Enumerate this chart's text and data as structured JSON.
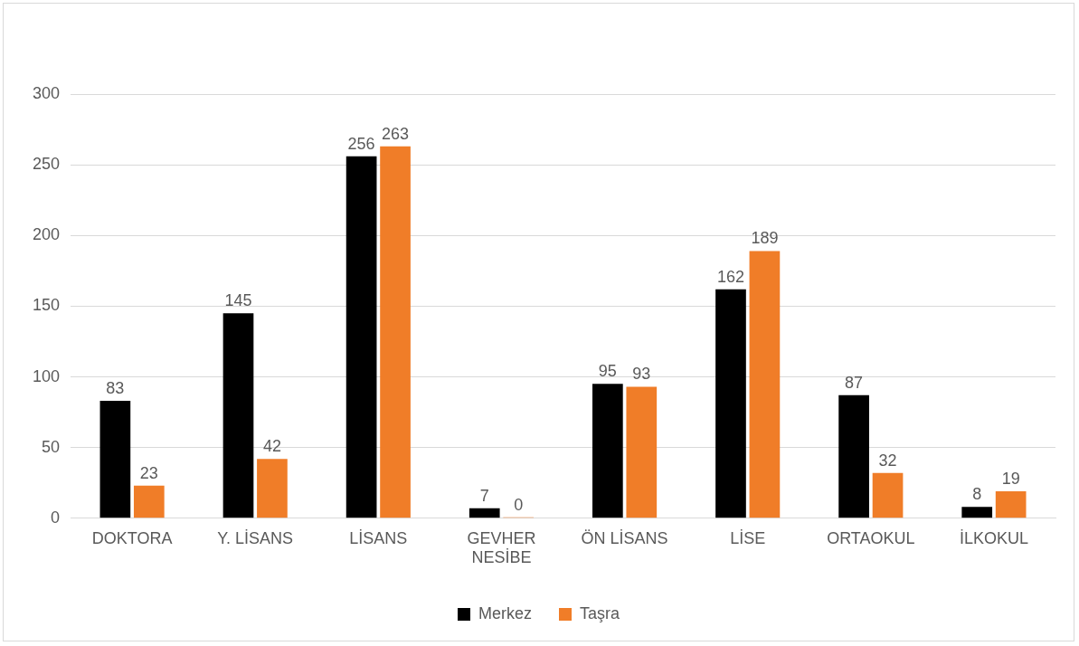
{
  "chart_data": {
    "type": "bar",
    "categories": [
      "DOKTORA",
      "Y. LİSANS",
      "LİSANS",
      "GEVHER NESİBE",
      "ÖN LİSANS",
      "LİSE",
      "ORTAOKUL",
      "İLKOKUL"
    ],
    "series": [
      {
        "name": "Merkez",
        "color": "#000000",
        "values": [
          83,
          145,
          256,
          7,
          95,
          162,
          87,
          8
        ]
      },
      {
        "name": "Taşra",
        "color": "#f07d28",
        "values": [
          23,
          42,
          263,
          0,
          93,
          189,
          32,
          19
        ]
      }
    ],
    "ylim": [
      0,
      300
    ],
    "yticks": [
      0,
      50,
      100,
      150,
      200,
      250,
      300
    ],
    "grid": "y",
    "legend": "bottom",
    "data_labels": true
  }
}
